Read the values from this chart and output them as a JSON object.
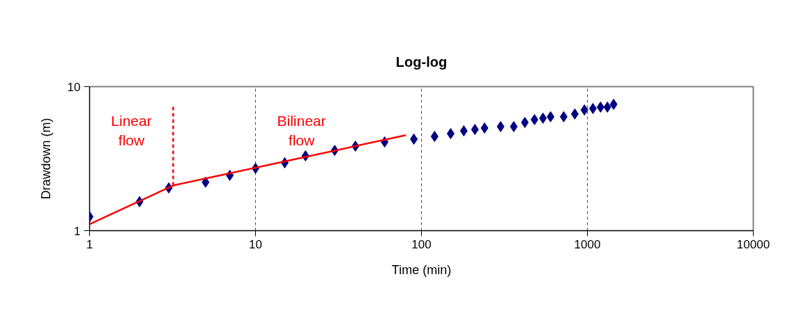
{
  "chart_data": {
    "type": "scatter",
    "title": "Log-log",
    "xlabel": "Time (min)",
    "ylabel": "Drawdown (m)",
    "log": "xy",
    "grid": "x",
    "xlim": [
      1,
      10000
    ],
    "ylim": [
      1,
      10
    ],
    "xticks": [
      1,
      10,
      100,
      1000,
      10000
    ],
    "yticks": [
      1,
      10
    ],
    "series": [
      {
        "marker": "diamond",
        "color": "#000080",
        "x": [
          1,
          2,
          3,
          5,
          7,
          10,
          15,
          20,
          30,
          40,
          60,
          90,
          120,
          150,
          180,
          210,
          240,
          300,
          360,
          420,
          480,
          540,
          600,
          720,
          840,
          960,
          1080,
          1200,
          1320,
          1440
        ],
        "values": [
          1.25,
          1.59,
          1.98,
          2.17,
          2.42,
          2.71,
          2.96,
          3.31,
          3.61,
          3.86,
          4.13,
          4.32,
          4.51,
          4.72,
          4.93,
          5.04,
          5.16,
          5.28,
          5.28,
          5.64,
          5.9,
          6.04,
          6.18,
          6.18,
          6.46,
          6.89,
          7.05,
          7.21,
          7.21,
          7.54
        ]
      },
      {
        "type": "line",
        "line_style": "solid",
        "color": "#ff0000",
        "x": [
          1,
          3.19,
          80.5
        ],
        "values": [
          1.11,
          2.06,
          4.6
        ]
      },
      {
        "type": "line",
        "line_style": "dashed",
        "color": "#ff0000",
        "x": [
          3.19,
          3.19
        ],
        "values": [
          2.06,
          7.26
        ]
      }
    ],
    "annotations": [
      "Linear\nflow",
      "Bilinear\nflow"
    ]
  }
}
